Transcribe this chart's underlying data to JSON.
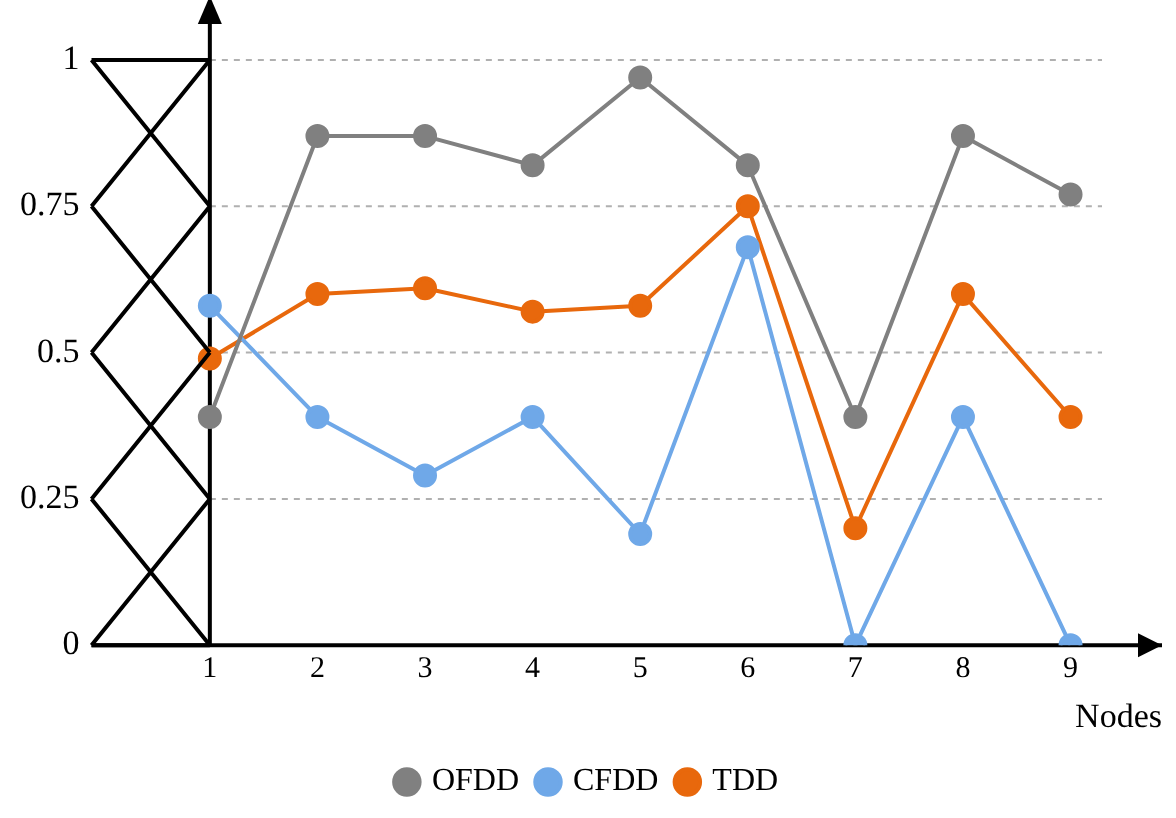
{
  "chart_data": {
    "type": "line",
    "xlabel": "Nodes",
    "x": [
      1,
      2,
      3,
      4,
      5,
      6,
      7,
      8,
      9
    ],
    "xlim": [
      -0.1,
      9.85
    ],
    "xticks": [
      1,
      2,
      3,
      4,
      5,
      6,
      7,
      8,
      9
    ],
    "ylim": [
      0,
      1
    ],
    "yticks": [
      0,
      0.25,
      0.5,
      0.75,
      1
    ],
    "grid": "y",
    "ref_lines": [
      {
        "axis": "x",
        "value": 1,
        "color": "#000000"
      }
    ],
    "legend": "bottom",
    "marker": "circle",
    "line_style": "solid",
    "series": [
      {
        "name": "OFDD",
        "color": "#808080",
        "values": [
          0.39,
          0.87,
          0.87,
          0.82,
          0.97,
          0.82,
          0.39,
          0.87,
          0.77
        ]
      },
      {
        "name": "CFDD",
        "color": "#6fa8e8",
        "values": [
          0.58,
          0.39,
          0.29,
          0.39,
          0.19,
          0.68,
          0,
          0.39,
          0
        ]
      },
      {
        "name": "TDD",
        "color": "#e8680c",
        "values": [
          0.49,
          0.6,
          0.61,
          0.57,
          0.58,
          0.75,
          0.2,
          0.6,
          0.39
        ]
      }
    ]
  }
}
